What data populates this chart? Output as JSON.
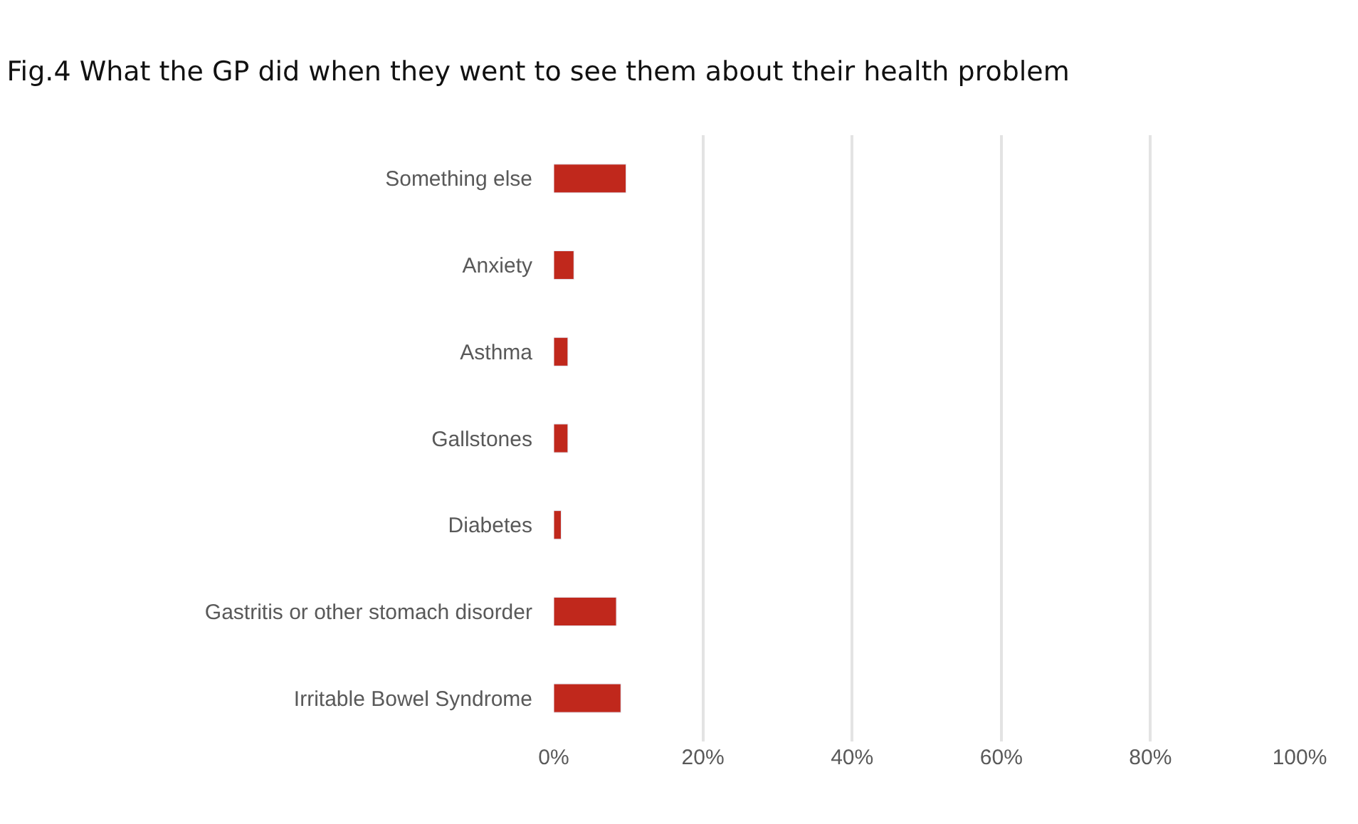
{
  "chart_data": {
    "type": "bar",
    "orientation": "horizontal",
    "title": "Fig.4 What the GP did when they went to see them about their health problem",
    "categories": [
      "Something else",
      "Anxiety",
      "Asthma",
      "Gallstones",
      "Diabetes",
      "Gastritis or other stomach disorder",
      "Irritable Bowel Syndrome"
    ],
    "values": [
      0.097,
      0.027,
      0.019,
      0.019,
      0.01,
      0.084,
      0.09
    ],
    "color": "#c0281c",
    "xlim": [
      0,
      1
    ],
    "xticks": [
      {
        "value": 0,
        "label": "0%"
      },
      {
        "value": 0.2,
        "label": "20%"
      },
      {
        "value": 0.4,
        "label": "40%"
      },
      {
        "value": 0.6,
        "label": "60%"
      },
      {
        "value": 0.8,
        "label": "80%"
      },
      {
        "value": 1,
        "label": "100%"
      }
    ],
    "grid": "x",
    "legend": false
  }
}
